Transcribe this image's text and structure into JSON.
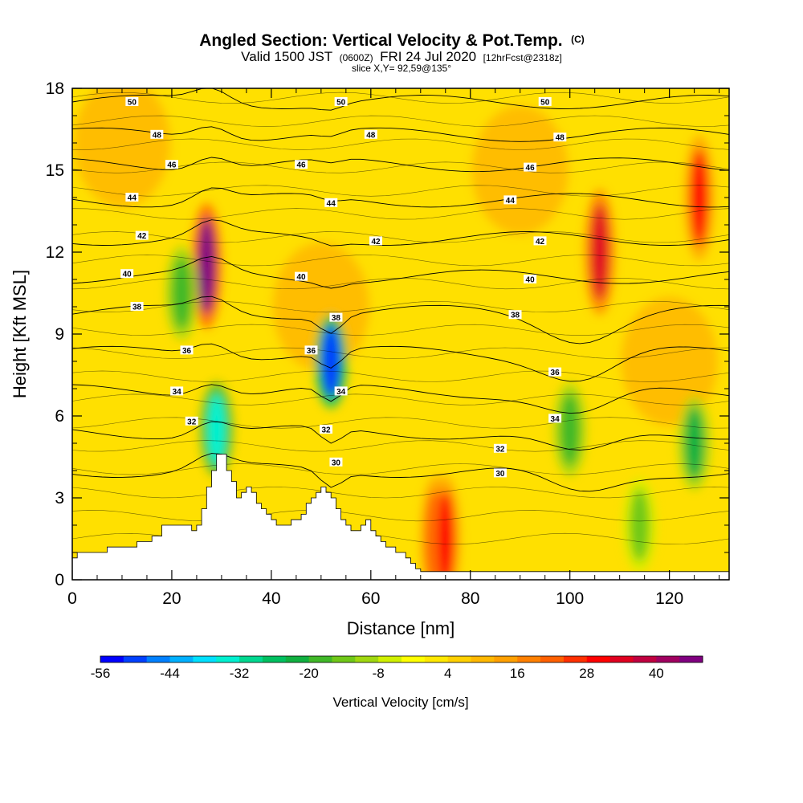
{
  "chart_data": {
    "type": "heatmap",
    "title": "Angled Section: Vertical Velocity & Pot.Temp.",
    "title_unit": "(C)",
    "subtitle": {
      "part1": "Valid 1500 JST",
      "part2": "(0600Z)",
      "part3": "FRI 24 Jul 2020",
      "part4": "[12hrFcst@2318z]"
    },
    "slice_note": "slice X,Y= 92,59@135°",
    "xlabel": "Distance [nm]",
    "ylabel": "Height [Kft MSL]",
    "xlim": [
      0,
      132
    ],
    "ylim": [
      0,
      18
    ],
    "x_ticks": [
      "0",
      "20",
      "40",
      "60",
      "80",
      "100",
      "120"
    ],
    "y_ticks": [
      "0",
      "3",
      "6",
      "9",
      "12",
      "15",
      "18"
    ],
    "colorbar": {
      "label": "Vertical Velocity [cm/s]",
      "min": -56,
      "max": 48,
      "step": 4,
      "tick_labels": [
        "-56",
        "-44",
        "-32",
        "-20",
        "-8",
        "4",
        "16",
        "28",
        "40"
      ],
      "colors": [
        "#0000ff",
        "#0040ff",
        "#0080ff",
        "#00b0ff",
        "#00e0ff",
        "#00f0d0",
        "#00d890",
        "#00c060",
        "#10b040",
        "#40b828",
        "#70c818",
        "#a0d810",
        "#d0f000",
        "#ffff00",
        "#ffe800",
        "#ffd000",
        "#ffb800",
        "#ffa000",
        "#ff8000",
        "#ff6000",
        "#ff3000",
        "#ff0000",
        "#e00020",
        "#c00040",
        "#a00060",
        "#800080"
      ]
    },
    "features": [
      {
        "x": 27,
        "y": 11.5,
        "value": 44,
        "type": "updraft"
      },
      {
        "x": 22,
        "y": 10.5,
        "value": -20,
        "type": "downdraft"
      },
      {
        "x": 52,
        "y": 8,
        "value": -52,
        "type": "downdraft"
      },
      {
        "x": 106,
        "y": 12,
        "value": 32,
        "type": "updraft"
      },
      {
        "x": 126,
        "y": 14,
        "value": 28,
        "type": "updraft"
      },
      {
        "x": 73,
        "y": 1.5,
        "value": 28,
        "type": "updraft"
      },
      {
        "x": 75,
        "y": 1.5,
        "value": 28,
        "type": "updraft"
      },
      {
        "x": 100,
        "y": 5.5,
        "value": -20,
        "type": "downdraft"
      },
      {
        "x": 125,
        "y": 5,
        "value": -24,
        "type": "downdraft"
      },
      {
        "x": 29,
        "y": 5.5,
        "value": -36,
        "type": "downdraft"
      },
      {
        "x": 114,
        "y": 2,
        "value": -16,
        "type": "downdraft"
      }
    ],
    "contour_labels": [
      {
        "text": "50",
        "x": 12,
        "y": 17.5
      },
      {
        "text": "48",
        "x": 17,
        "y": 16.3
      },
      {
        "text": "46",
        "x": 20,
        "y": 15.2
      },
      {
        "text": "44",
        "x": 12,
        "y": 14.0
      },
      {
        "text": "42",
        "x": 14,
        "y": 12.6
      },
      {
        "text": "40",
        "x": 11,
        "y": 11.2
      },
      {
        "text": "38",
        "x": 13,
        "y": 10.0
      },
      {
        "text": "36",
        "x": 23,
        "y": 8.4
      },
      {
        "text": "34",
        "x": 21,
        "y": 6.9
      },
      {
        "text": "32",
        "x": 24,
        "y": 5.8
      },
      {
        "text": "50",
        "x": 54,
        "y": 17.5
      },
      {
        "text": "48",
        "x": 60,
        "y": 16.3
      },
      {
        "text": "46",
        "x": 46,
        "y": 15.2
      },
      {
        "text": "44",
        "x": 52,
        "y": 13.8
      },
      {
        "text": "42",
        "x": 61,
        "y": 12.4
      },
      {
        "text": "40",
        "x": 46,
        "y": 11.1
      },
      {
        "text": "38",
        "x": 53,
        "y": 9.6
      },
      {
        "text": "36",
        "x": 48,
        "y": 8.4
      },
      {
        "text": "34",
        "x": 54,
        "y": 6.9
      },
      {
        "text": "32",
        "x": 51,
        "y": 5.5
      },
      {
        "text": "30",
        "x": 53,
        "y": 4.3
      },
      {
        "text": "50",
        "x": 95,
        "y": 17.5
      },
      {
        "text": "48",
        "x": 98,
        "y": 16.2
      },
      {
        "text": "46",
        "x": 92,
        "y": 15.1
      },
      {
        "text": "44",
        "x": 88,
        "y": 13.9
      },
      {
        "text": "42",
        "x": 94,
        "y": 12.4
      },
      {
        "text": "40",
        "x": 92,
        "y": 11.0
      },
      {
        "text": "38",
        "x": 89,
        "y": 9.7
      },
      {
        "text": "36",
        "x": 97,
        "y": 7.6
      },
      {
        "text": "34",
        "x": 97,
        "y": 5.9
      },
      {
        "text": "32",
        "x": 86,
        "y": 4.8
      },
      {
        "text": "30",
        "x": 86,
        "y": 3.9
      }
    ],
    "terrain": [
      [
        0,
        0.8
      ],
      [
        1,
        1.0
      ],
      [
        3,
        1.0
      ],
      [
        5,
        1.0
      ],
      [
        6,
        1.0
      ],
      [
        7,
        1.2
      ],
      [
        11,
        1.2
      ],
      [
        12,
        1.2
      ],
      [
        13,
        1.4
      ],
      [
        15,
        1.4
      ],
      [
        16,
        1.6
      ],
      [
        17,
        1.6
      ],
      [
        18,
        2.0
      ],
      [
        19,
        2.0
      ],
      [
        20,
        2.0
      ],
      [
        21,
        2.0
      ],
      [
        22,
        2.0
      ],
      [
        23,
        2.0
      ],
      [
        24,
        1.8
      ],
      [
        25,
        2.0
      ],
      [
        26,
        2.6
      ],
      [
        27,
        3.4
      ],
      [
        28,
        4.0
      ],
      [
        29,
        4.6
      ],
      [
        30,
        4.6
      ],
      [
        31,
        4.0
      ],
      [
        32,
        3.6
      ],
      [
        33,
        3.0
      ],
      [
        34,
        3.2
      ],
      [
        35,
        3.4
      ],
      [
        36,
        3.2
      ],
      [
        37,
        2.8
      ],
      [
        38,
        2.6
      ],
      [
        39,
        2.4
      ],
      [
        40,
        2.2
      ],
      [
        41,
        2.0
      ],
      [
        42,
        2.0
      ],
      [
        43,
        2.0
      ],
      [
        44,
        2.2
      ],
      [
        45,
        2.2
      ],
      [
        46,
        2.4
      ],
      [
        47,
        2.8
      ],
      [
        48,
        3.0
      ],
      [
        49,
        3.2
      ],
      [
        50,
        3.4
      ],
      [
        51,
        3.2
      ],
      [
        52,
        3.0
      ],
      [
        53,
        2.6
      ],
      [
        54,
        2.2
      ],
      [
        55,
        2.0
      ],
      [
        56,
        1.8
      ],
      [
        57,
        1.8
      ],
      [
        58,
        2.0
      ],
      [
        59,
        2.2
      ],
      [
        60,
        1.8
      ],
      [
        61,
        1.6
      ],
      [
        62,
        1.4
      ],
      [
        63,
        1.2
      ],
      [
        64,
        1.2
      ],
      [
        65,
        1.0
      ],
      [
        66,
        1.0
      ],
      [
        67,
        0.8
      ],
      [
        68,
        0.6
      ],
      [
        69,
        0.4
      ],
      [
        70,
        0.3
      ],
      [
        132,
        0.3
      ]
    ]
  }
}
